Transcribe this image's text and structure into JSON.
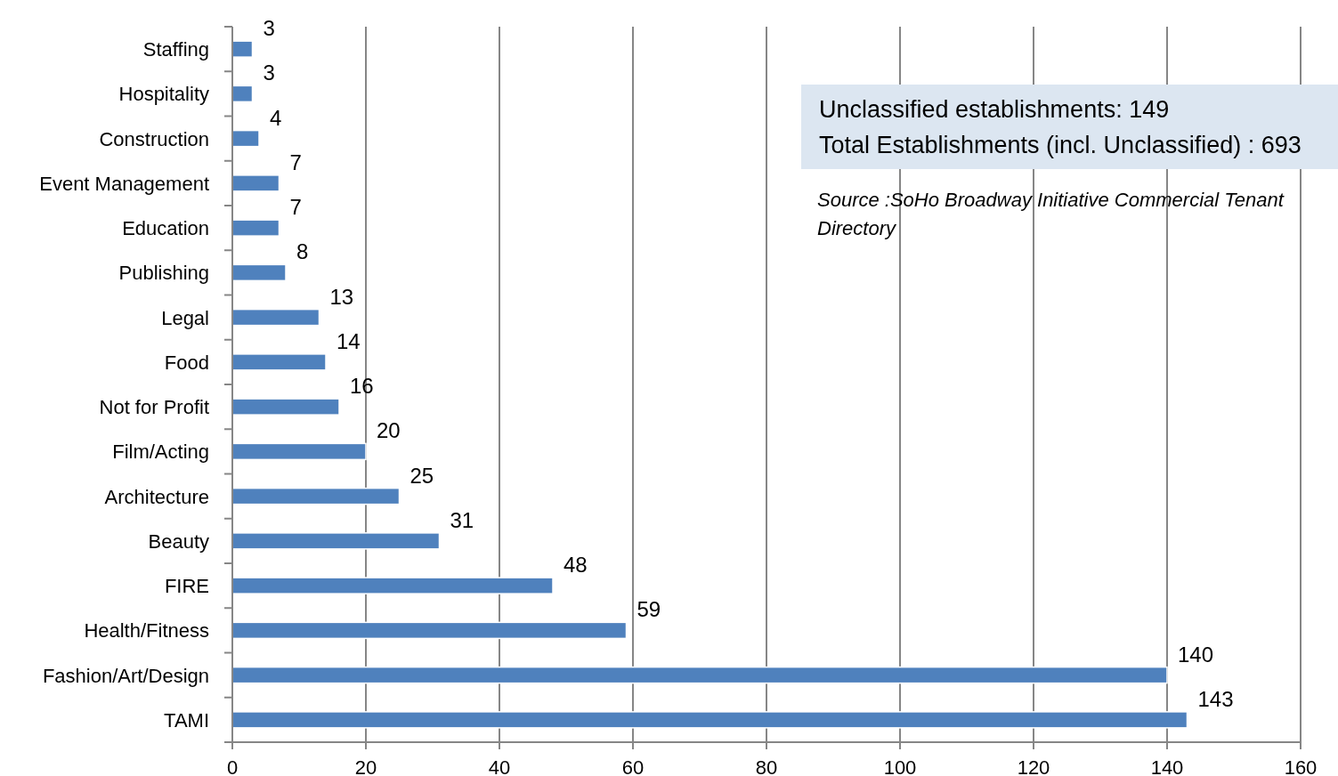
{
  "chart_data": {
    "type": "bar",
    "orientation": "horizontal",
    "categories": [
      "Staffing",
      "Hospitality",
      "Construction",
      "Event Management",
      "Education",
      "Publishing",
      "Legal",
      "Food",
      "Not for Profit",
      "Film/Acting",
      "Architecture",
      "Beauty",
      "FIRE",
      "Health/Fitness",
      "Fashion/Art/Design",
      "TAMI"
    ],
    "values": [
      3,
      3,
      4,
      7,
      7,
      8,
      13,
      14,
      16,
      20,
      25,
      31,
      48,
      59,
      140,
      143
    ],
    "color": "#4f81bd",
    "data_labels": true,
    "xlim": [
      0,
      160
    ],
    "xticks": [
      0,
      20,
      40,
      60,
      80,
      100,
      120,
      140,
      160
    ],
    "grid": "x",
    "annotations": [
      "Unclassified establishments: 149",
      "Total Establishments (incl. Unclassified) : 693",
      "Source :SoHo Broadway  Initiative  Commercial Tenant Directory"
    ]
  }
}
